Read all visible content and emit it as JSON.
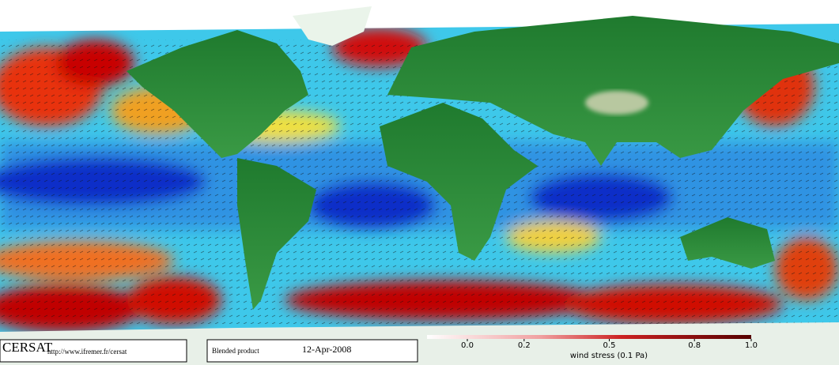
{
  "header": {
    "logo": "CERSAT",
    "url": "http://www.ifremer.fr/cersat",
    "product": "Blended product",
    "date": "12-Apr-2008"
  },
  "colorbar": {
    "label": "wind stress (0.1 Pa)",
    "range": [
      0,
      1
    ],
    "ticks": [
      {
        "value": 0,
        "label": "0.0"
      },
      0.2,
      0.5,
      0.8,
      {
        "value": 1,
        "label": "1.0"
      }
    ]
  }
}
